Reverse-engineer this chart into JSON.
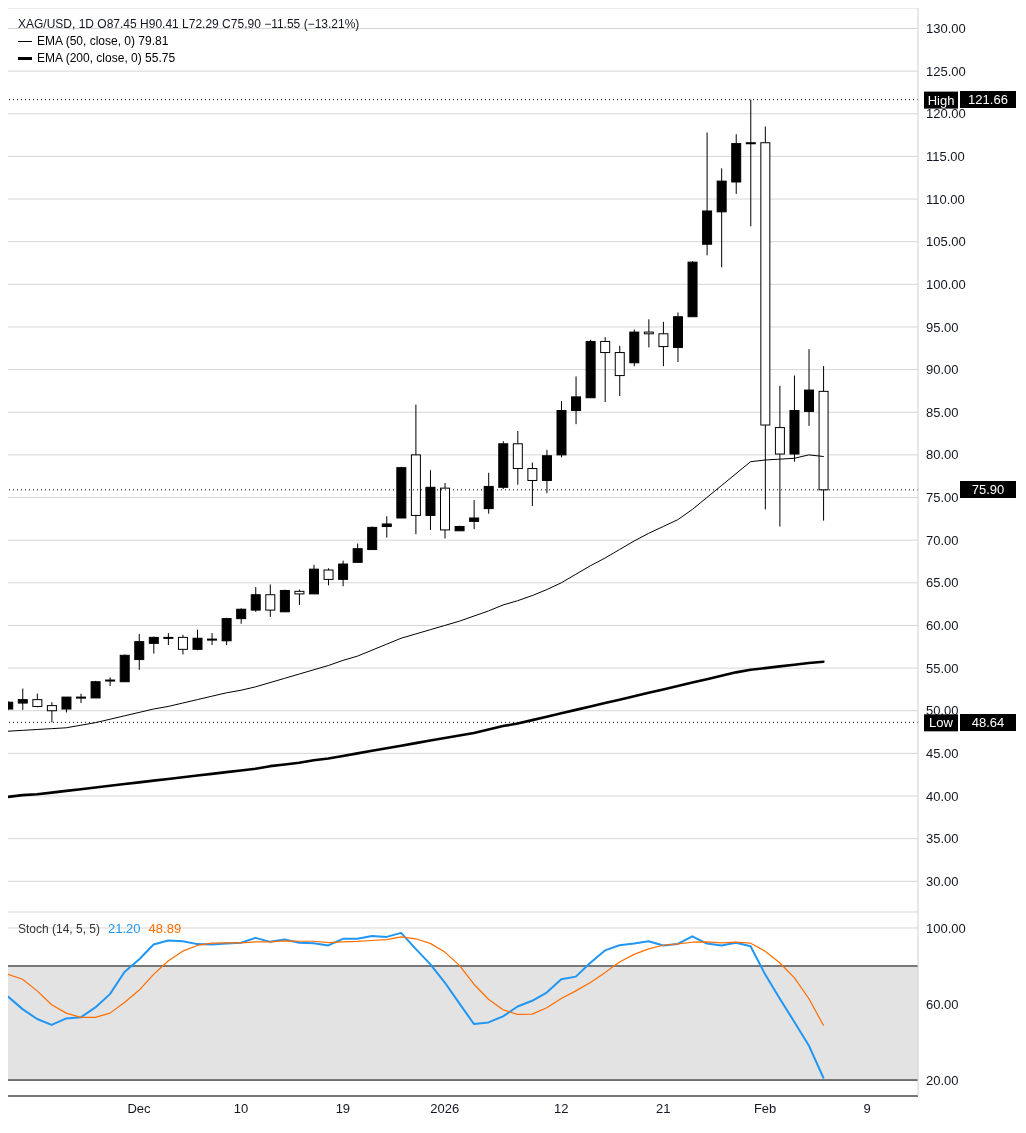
{
  "chart_data": [
    {
      "type": "candlestick",
      "title": "XAG/USD, 1D  O87.45  H90.41  L72.29  C75.90  −11.55 (−13.21%)",
      "color": "#000000",
      "categories": [
        null,
        null,
        null,
        null,
        null,
        null,
        null,
        null,
        null,
        null,
        null,
        null,
        null,
        null,
        null,
        null,
        null,
        null,
        null,
        null,
        null,
        null,
        null,
        null,
        null,
        null,
        null,
        null,
        null,
        null,
        null,
        null,
        null,
        null,
        null,
        null,
        null,
        null,
        null,
        null,
        null,
        null,
        null,
        null,
        null,
        null,
        null,
        null,
        null,
        null,
        null,
        null,
        null,
        null,
        null,
        null,
        null,
        null,
        null,
        null,
        null,
        null,
        null
      ],
      "annotations": [
        "121.66",
        "48.64",
        "75.90"
      ],
      "ohlc": [
        [
          50.2,
          51.1,
          50.1,
          51.0
        ],
        [
          50.9,
          52.6,
          50.1,
          51.3
        ],
        [
          51.3,
          52.0,
          50.4,
          50.5
        ],
        [
          50.6,
          51.0,
          48.64,
          50.0
        ],
        [
          50.2,
          51.6,
          49.8,
          51.6
        ],
        [
          51.5,
          52.0,
          50.9,
          51.6
        ],
        [
          51.5,
          53.5,
          51.5,
          53.4
        ],
        [
          53.5,
          53.9,
          52.9,
          53.6
        ],
        [
          53.4,
          56.6,
          53.4,
          56.5
        ],
        [
          56.0,
          59.0,
          54.8,
          58.1
        ],
        [
          57.9,
          58.7,
          56.7,
          58.6
        ],
        [
          58.5,
          59.1,
          57.7,
          58.6
        ],
        [
          58.6,
          58.9,
          56.6,
          57.2
        ],
        [
          57.2,
          59.5,
          57.1,
          58.5
        ],
        [
          58.3,
          59.1,
          57.7,
          58.4
        ],
        [
          58.2,
          60.9,
          57.7,
          60.8
        ],
        [
          60.8,
          62.0,
          60.2,
          61.9
        ],
        [
          61.8,
          64.5,
          61.6,
          63.6
        ],
        [
          63.6,
          64.8,
          61.0,
          61.8
        ],
        [
          61.6,
          64.2,
          61.6,
          64.1
        ],
        [
          64.0,
          64.2,
          62.4,
          63.7
        ],
        [
          63.7,
          67.1,
          63.7,
          66.6
        ],
        [
          66.5,
          66.7,
          64.7,
          65.4
        ],
        [
          65.4,
          67.6,
          64.6,
          67.2
        ],
        [
          67.4,
          69.6,
          67.4,
          69.0
        ],
        [
          68.9,
          71.6,
          68.9,
          71.5
        ],
        [
          71.6,
          72.8,
          70.3,
          71.9
        ],
        [
          72.6,
          78.6,
          72.6,
          78.5
        ],
        [
          80.0,
          85.9,
          70.7,
          72.9
        ],
        [
          72.9,
          78.2,
          71.2,
          76.2
        ],
        [
          76.1,
          76.7,
          70.2,
          71.2
        ],
        [
          71.1,
          71.7,
          71.1,
          71.6
        ],
        [
          72.2,
          74.7,
          71.3,
          72.6
        ],
        [
          73.7,
          77.9,
          73.1,
          76.3
        ],
        [
          76.2,
          81.6,
          76.0,
          81.3
        ],
        [
          81.3,
          82.8,
          76.5,
          78.4
        ],
        [
          78.4,
          79.1,
          74.0,
          77.0
        ],
        [
          77.0,
          80.6,
          75.5,
          79.9
        ],
        [
          80.0,
          86.3,
          79.7,
          85.2
        ],
        [
          85.2,
          89.2,
          83.6,
          86.8
        ],
        [
          86.7,
          93.5,
          86.7,
          93.3
        ],
        [
          93.3,
          93.8,
          86.2,
          92.0
        ],
        [
          92.0,
          92.8,
          86.9,
          89.3
        ],
        [
          90.8,
          94.7,
          90.4,
          94.4
        ],
        [
          94.4,
          95.9,
          92.6,
          94.2
        ],
        [
          94.2,
          95.6,
          90.4,
          92.7
        ],
        [
          92.6,
          96.7,
          90.9,
          96.2
        ],
        [
          96.2,
          102.7,
          96.2,
          102.6
        ],
        [
          104.7,
          117.8,
          103.4,
          108.6
        ],
        [
          108.5,
          113.6,
          102.0,
          112.1
        ],
        [
          112.0,
          117.6,
          110.6,
          116.5
        ],
        [
          116.5,
          121.66,
          106.8,
          116.6
        ],
        [
          116.6,
          118.5,
          73.6,
          83.5
        ],
        [
          83.2,
          88.1,
          71.6,
          80.1
        ],
        [
          80.1,
          89.3,
          79.2,
          85.2
        ],
        [
          85.1,
          92.4,
          83.4,
          87.6
        ],
        [
          87.45,
          90.41,
          72.29,
          75.9
        ],
        null,
        null,
        null,
        null,
        null,
        null
      ],
      "series": [
        {
          "name": "EMA (50, close, 0) 79.81",
          "type": "line",
          "color": "#000000",
          "values": [
            47.6,
            47.7,
            47.8,
            47.9,
            48.0,
            48.3,
            48.6,
            49.0,
            49.4,
            49.8,
            50.2,
            50.5,
            50.9,
            51.3,
            51.7,
            52.1,
            52.4,
            52.8,
            53.3,
            53.8,
            54.3,
            54.8,
            55.3,
            55.9,
            56.4,
            57.1,
            57.8,
            58.5,
            59.0,
            59.5,
            60.0,
            60.5,
            61.1,
            61.7,
            62.4,
            62.9,
            63.5,
            64.2,
            65.0,
            66.0,
            67.0,
            67.9,
            68.9,
            69.9,
            70.8,
            71.6,
            72.4,
            73.6,
            75.0,
            76.4,
            77.8,
            79.2,
            79.4,
            79.5,
            79.6,
            80.0,
            79.81,
            null,
            null,
            null,
            null,
            null,
            null
          ]
        },
        {
          "name": "EMA (200, close, 0) 55.75",
          "type": "line",
          "color": "#000000",
          "values": [
            39.9,
            40.1,
            40.2,
            40.4,
            40.6,
            40.8,
            41.0,
            41.2,
            41.4,
            41.6,
            41.8,
            42.0,
            42.2,
            42.4,
            42.6,
            42.8,
            43.0,
            43.2,
            43.5,
            43.7,
            43.9,
            44.2,
            44.4,
            44.7,
            45.0,
            45.3,
            45.6,
            45.9,
            46.2,
            46.5,
            46.8,
            47.1,
            47.4,
            47.8,
            48.2,
            48.5,
            48.9,
            49.3,
            49.7,
            50.1,
            50.5,
            50.9,
            51.3,
            51.7,
            52.1,
            52.5,
            52.9,
            53.3,
            53.7,
            54.1,
            54.5,
            54.8,
            55.0,
            55.2,
            55.4,
            55.6,
            55.75,
            null,
            null,
            null,
            null,
            null,
            null
          ]
        }
      ],
      "marker": "none",
      "ylim": [
        26.4,
        132.4
      ],
      "yticks": [
        {
          "value": 30,
          "label": "30.00"
        },
        {
          "value": 35,
          "label": "35.00"
        },
        {
          "value": 40,
          "label": "40.00"
        },
        {
          "value": 45,
          "label": "45.00"
        },
        {
          "value": 50,
          "label": "50.00"
        },
        {
          "value": 55,
          "label": "55.00"
        },
        {
          "value": 60,
          "label": "60.00"
        },
        {
          "value": 65,
          "label": "65.00"
        },
        {
          "value": 70,
          "label": "70.00"
        },
        {
          "value": 75,
          "label": "75.00"
        },
        {
          "value": 80,
          "label": "80.00"
        },
        {
          "value": 85,
          "label": "85.00"
        },
        {
          "value": 90,
          "label": "90.00"
        },
        {
          "value": 95,
          "label": "95.00"
        },
        {
          "value": 100,
          "label": "100.00"
        },
        {
          "value": 105,
          "label": "105.00"
        },
        {
          "value": 110,
          "label": "110.00"
        },
        {
          "value": 115,
          "label": "115.00"
        },
        {
          "value": 120,
          "label": "120.00"
        },
        {
          "value": 125,
          "label": "125.00"
        },
        {
          "value": 130,
          "label": "130.00"
        }
      ],
      "grid": "y",
      "tick_labels": "y",
      "legend": "top left",
      "ref_lines": [
        {
          "axis": "y",
          "value": 121.66,
          "label": "High",
          "line_style": "dotted"
        },
        {
          "axis": "y",
          "value": 48.64,
          "label": "Low",
          "line_style": "dotted"
        },
        {
          "axis": "y",
          "value": 75.9,
          "label": null,
          "line_style": "dotted"
        }
      ]
    },
    {
      "type": "line",
      "title": "Stoch (14, 5, 5)",
      "categories": [
        null,
        null,
        null,
        null,
        null,
        null,
        null,
        null,
        null,
        "Dec",
        null,
        null,
        null,
        null,
        null,
        null,
        "10",
        null,
        null,
        null,
        null,
        null,
        null,
        "19",
        null,
        null,
        null,
        null,
        null,
        null,
        "2026",
        null,
        null,
        null,
        null,
        null,
        null,
        null,
        "12",
        null,
        null,
        null,
        null,
        null,
        null,
        "21",
        null,
        null,
        null,
        null,
        null,
        null,
        "Feb",
        null,
        null,
        null,
        null,
        null,
        null,
        "9",
        null,
        null,
        null
      ],
      "series": [
        {
          "name": "21.20",
          "color": "#2196f3",
          "values": [
            63.9,
            57.3,
            52.1,
            49.0,
            52.4,
            53.0,
            58.2,
            65.2,
            76.8,
            83.4,
            91.3,
            93.4,
            93.0,
            91.5,
            91.3,
            91.8,
            92.2,
            94.8,
            92.7,
            93.9,
            92.2,
            92.0,
            90.8,
            94.3,
            94.3,
            95.8,
            95.3,
            97.4,
            89.0,
            81.0,
            71.3,
            60.3,
            49.5,
            50.3,
            53.5,
            58.7,
            61.7,
            66.0,
            73.0,
            74.4,
            81.7,
            88.2,
            90.9,
            91.8,
            93.0,
            90.8,
            91.6,
            95.6,
            91.8,
            90.8,
            92.2,
            90.4,
            75.6,
            62.9,
            50.7,
            38.2,
            21.2,
            null,
            null,
            null,
            null,
            null,
            null
          ]
        },
        {
          "name": "48.89",
          "color": "#ff6d00",
          "values": [
            75.6,
            73.0,
            66.9,
            59.6,
            55.2,
            53.0,
            53.0,
            55.2,
            60.8,
            67.2,
            75.6,
            82.6,
            87.8,
            90.8,
            92.0,
            92.2,
            92.2,
            92.7,
            92.7,
            93.2,
            93.0,
            93.0,
            92.3,
            92.7,
            92.9,
            93.4,
            93.9,
            95.3,
            94.3,
            91.9,
            87.3,
            80.3,
            70.4,
            62.5,
            57.0,
            54.5,
            54.7,
            58.0,
            62.9,
            66.9,
            71.3,
            76.5,
            82.1,
            86.1,
            89.0,
            90.9,
            91.6,
            92.5,
            92.7,
            92.2,
            92.5,
            92.0,
            87.8,
            81.7,
            73.9,
            62.9,
            48.89,
            null,
            null,
            null,
            null,
            null,
            null
          ]
        }
      ],
      "marker": "none",
      "ylim": [
        11.6,
        108.4
      ],
      "yticks": [
        {
          "value": 20,
          "label": "20.00"
        },
        {
          "value": 60,
          "label": "60.00"
        },
        {
          "value": 100,
          "label": "100.00"
        }
      ],
      "grid": "y",
      "bands": [
        {
          "axis": "y",
          "from": 20,
          "to": 80,
          "color": "#e3e3e3"
        }
      ],
      "ref_lines": [
        {
          "axis": "y",
          "value": 80,
          "label": null,
          "color": "#000000"
        },
        {
          "axis": "y",
          "value": 20,
          "label": null,
          "color": "#000000"
        }
      ]
    }
  ]
}
